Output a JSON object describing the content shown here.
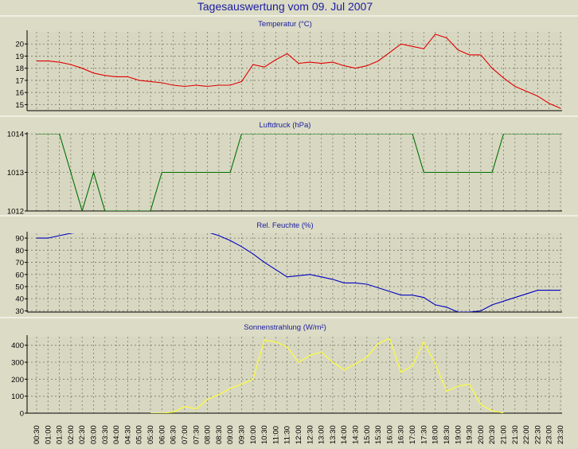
{
  "title": "Tagesauswertung vom 09. Jul 2007",
  "colors": {
    "background": "#dcdcc6",
    "plot_background": "#d8d8c2",
    "title": "#1a1aa0",
    "grid": "#7a7a6a",
    "axis": "#000000",
    "separator": "#f4f4ec"
  },
  "x_ticks": [
    "00:30",
    "01:00",
    "01:30",
    "02:00",
    "02:30",
    "03:00",
    "03:30",
    "04:00",
    "04:30",
    "05:00",
    "05:30",
    "06:00",
    "06:30",
    "07:00",
    "07:30",
    "08:00",
    "08:30",
    "09:00",
    "09:30",
    "10:00",
    "10:30",
    "11:00",
    "11:30",
    "12:00",
    "12:30",
    "13:00",
    "13:30",
    "14:00",
    "14:30",
    "15:00",
    "15:30",
    "16:00",
    "16:30",
    "17:00",
    "17:30",
    "18:00",
    "18:30",
    "19:00",
    "19:30",
    "20:00",
    "20:30",
    "21:00",
    "21:30",
    "22:00",
    "22:30",
    "23:00",
    "23:30"
  ],
  "chart_data": [
    {
      "type": "line",
      "title": "Temperatur (°C)",
      "color": "#e00000",
      "ylim": [
        14.5,
        21
      ],
      "yticks": [
        15,
        16,
        17,
        18,
        19,
        20
      ],
      "grid": true,
      "x": [
        "00:30",
        "01:00",
        "01:30",
        "02:00",
        "02:30",
        "03:00",
        "03:30",
        "04:00",
        "04:30",
        "05:00",
        "05:30",
        "06:00",
        "06:30",
        "07:00",
        "07:30",
        "08:00",
        "08:30",
        "09:00",
        "09:30",
        "10:00",
        "10:30",
        "11:00",
        "11:30",
        "12:00",
        "12:30",
        "13:00",
        "13:30",
        "14:00",
        "14:30",
        "15:00",
        "15:30",
        "16:00",
        "16:30",
        "17:00",
        "17:30",
        "18:00",
        "18:30",
        "19:00",
        "19:30",
        "20:00",
        "20:30",
        "21:00",
        "21:30",
        "22:00",
        "22:30",
        "23:00",
        "23:30"
      ],
      "values": [
        18.6,
        18.6,
        18.5,
        18.3,
        18.0,
        17.6,
        17.4,
        17.3,
        17.3,
        17.0,
        16.9,
        16.8,
        16.6,
        16.5,
        16.6,
        16.5,
        16.6,
        16.6,
        16.9,
        18.3,
        18.1,
        18.7,
        19.2,
        18.4,
        18.5,
        18.4,
        18.5,
        18.2,
        18.0,
        18.2,
        18.6,
        19.3,
        20.0,
        19.8,
        19.6,
        20.8,
        20.5,
        19.5,
        19.1,
        19.1,
        18.0,
        17.2,
        16.5,
        16.1,
        15.7,
        15.1,
        14.7
      ]
    },
    {
      "type": "line",
      "title": "Luftdruck (hPa)",
      "color": "#007000",
      "ylim": [
        1012,
        1014
      ],
      "yticks": [
        1012,
        1013,
        1014
      ],
      "grid": true,
      "x": [
        "00:30",
        "01:00",
        "01:30",
        "02:00",
        "02:30",
        "03:00",
        "03:30",
        "04:00",
        "04:30",
        "05:00",
        "05:30",
        "06:00",
        "06:30",
        "07:00",
        "07:30",
        "08:00",
        "08:30",
        "09:00",
        "09:30",
        "10:00",
        "10:30",
        "11:00",
        "11:30",
        "12:00",
        "12:30",
        "13:00",
        "13:30",
        "14:00",
        "14:30",
        "15:00",
        "15:30",
        "16:00",
        "16:30",
        "17:00",
        "17:30",
        "18:00",
        "18:30",
        "19:00",
        "19:30",
        "20:00",
        "20:30",
        "21:00",
        "21:30",
        "22:00",
        "22:30",
        "23:00",
        "23:30"
      ],
      "values": [
        1014,
        1014,
        1014,
        1013,
        1012,
        1013,
        1012,
        1012,
        1012,
        1012,
        1012,
        1013,
        1013,
        1013,
        1013,
        1013,
        1013,
        1013,
        1014,
        1014,
        1014,
        1014,
        1014,
        1014,
        1014,
        1014,
        1014,
        1014,
        1014,
        1014,
        1014,
        1014,
        1014,
        1014,
        1013,
        1013,
        1013,
        1013,
        1013,
        1013,
        1013,
        1014,
        1014,
        1014,
        1014,
        1014,
        1014
      ]
    },
    {
      "type": "line",
      "title": "Rel. Feuchte (%)",
      "color": "#0000c0",
      "ylim": [
        29,
        94
      ],
      "yticks": [
        30,
        40,
        50,
        60,
        70,
        80,
        90
      ],
      "grid": true,
      "x": [
        "00:30",
        "01:00",
        "01:30",
        "02:00",
        "02:30",
        "03:00",
        "03:30",
        "04:00",
        "04:30",
        "05:00",
        "05:30",
        "06:00",
        "06:30",
        "07:00",
        "07:30",
        "08:00",
        "08:30",
        "09:00",
        "09:30",
        "10:00",
        "10:30",
        "11:00",
        "11:30",
        "12:00",
        "12:30",
        "13:00",
        "13:30",
        "14:00",
        "14:30",
        "15:00",
        "15:30",
        "16:00",
        "16:30",
        "17:00",
        "17:30",
        "18:00",
        "18:30",
        "19:00",
        "19:30",
        "20:00",
        "20:30",
        "21:00",
        "21:30",
        "22:00",
        "22:30",
        "23:00",
        "23:30"
      ],
      "values": [
        90,
        90,
        92,
        94,
        95,
        95,
        95,
        95,
        95,
        95,
        95,
        95,
        95,
        95,
        95,
        95,
        92,
        88,
        83,
        77,
        70,
        64,
        58,
        59,
        60,
        58,
        56,
        53,
        53,
        52,
        49,
        46,
        43,
        43,
        41,
        35,
        33,
        29,
        29,
        30,
        35,
        38,
        41,
        44,
        47,
        47,
        47
      ]
    },
    {
      "type": "line",
      "title": "Sonnenstrahlung (W/m²)",
      "color": "#ffff33",
      "ylim": [
        0,
        450
      ],
      "yticks": [
        0,
        100,
        200,
        300,
        400
      ],
      "grid": true,
      "x": [
        "05:30",
        "06:00",
        "06:30",
        "07:00",
        "07:30",
        "08:00",
        "08:30",
        "09:00",
        "09:30",
        "10:00",
        "10:30",
        "11:00",
        "11:30",
        "12:00",
        "12:30",
        "13:00",
        "13:30",
        "14:00",
        "14:30",
        "15:00",
        "15:30",
        "16:00",
        "16:30",
        "17:00",
        "17:30",
        "18:00",
        "18:30",
        "19:00",
        "19:30",
        "20:00",
        "20:30",
        "21:00"
      ],
      "values": [
        0,
        0,
        5,
        40,
        25,
        80,
        110,
        145,
        170,
        200,
        430,
        420,
        390,
        300,
        340,
        360,
        300,
        255,
        290,
        330,
        410,
        440,
        240,
        280,
        420,
        290,
        130,
        160,
        170,
        50,
        15,
        0
      ]
    }
  ]
}
